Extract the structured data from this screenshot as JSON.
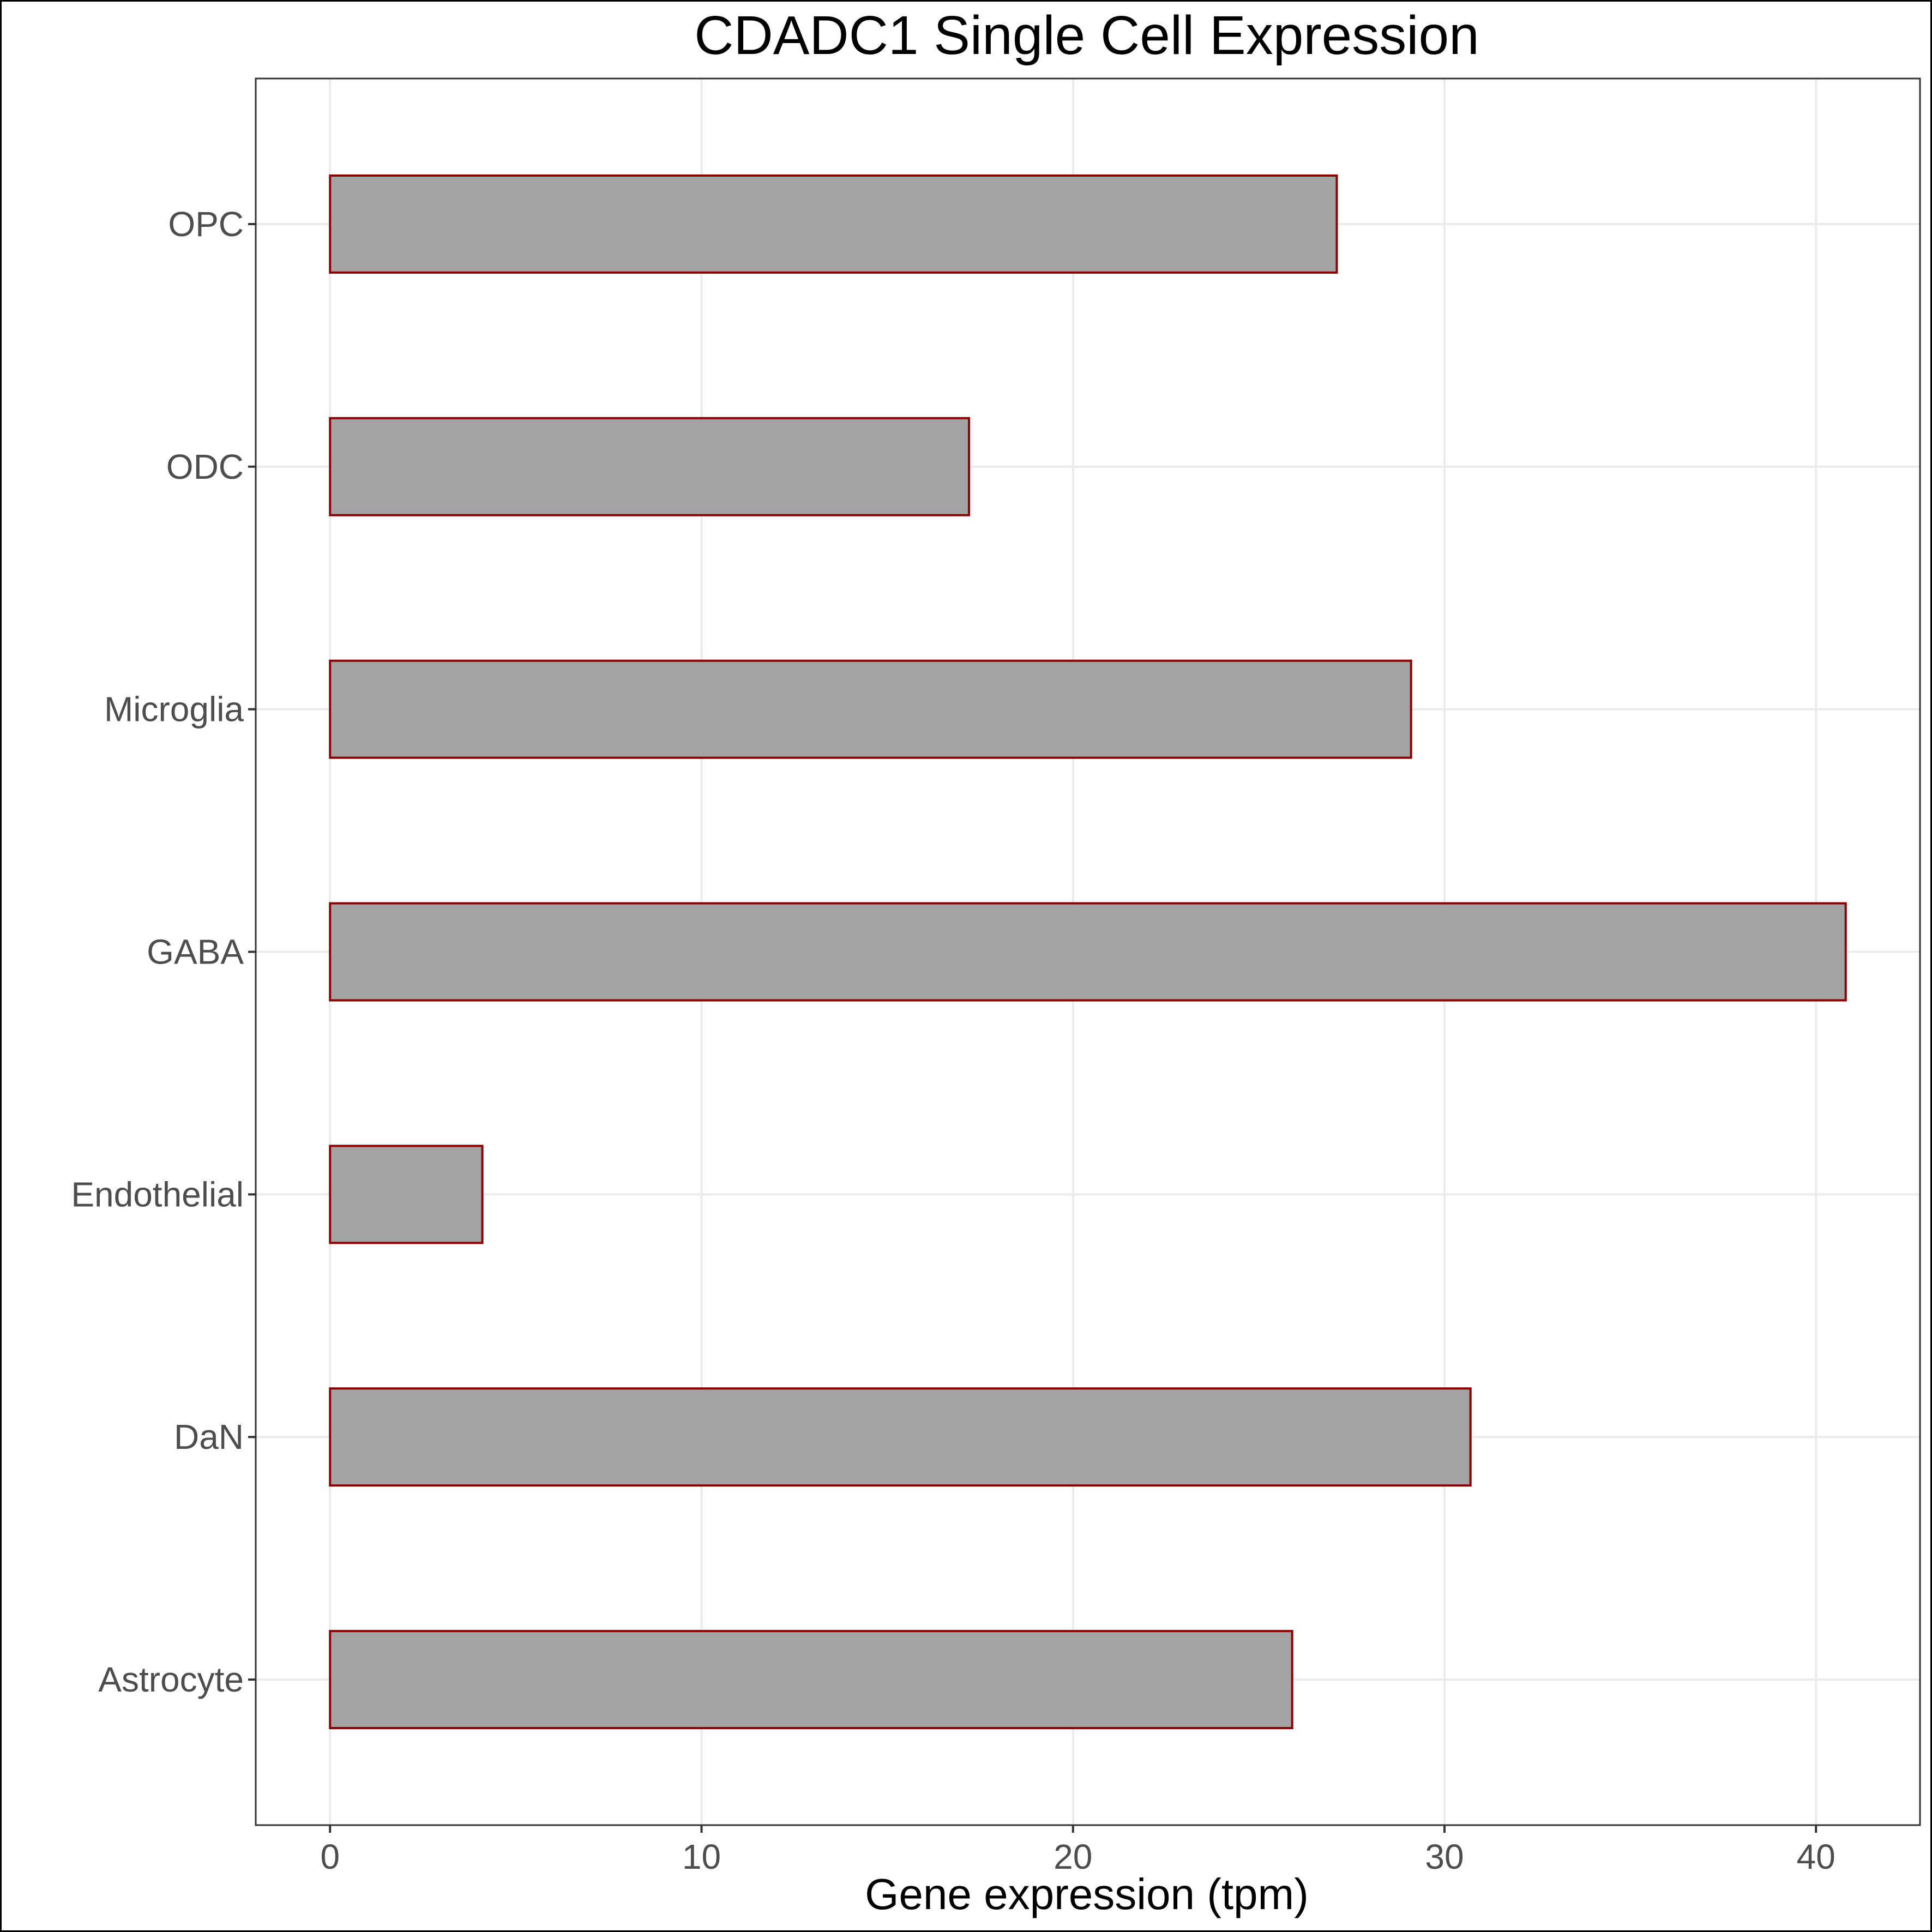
{
  "chart_data": {
    "type": "bar",
    "orientation": "horizontal",
    "title": "CDADC1 Single Cell Expression",
    "xlabel": "Gene expression (tpm)",
    "ylabel": "",
    "categories": [
      "Astrocyte",
      "DaN",
      "Endothelial",
      "GABA",
      "Microglia",
      "ODC",
      "OPC"
    ],
    "values": [
      25.9,
      30.7,
      4.1,
      40.8,
      29.1,
      17.2,
      27.1
    ],
    "xlim": [
      -2,
      42.8
    ],
    "xticks": [
      0,
      10,
      20,
      30,
      40
    ],
    "grid": true,
    "legend": "none",
    "colors": {
      "bar_fill": "#a3a3a3",
      "bar_outline": "#8b0000",
      "gridline": "#ebebeb",
      "tick_label": "#4d4d4d"
    }
  }
}
